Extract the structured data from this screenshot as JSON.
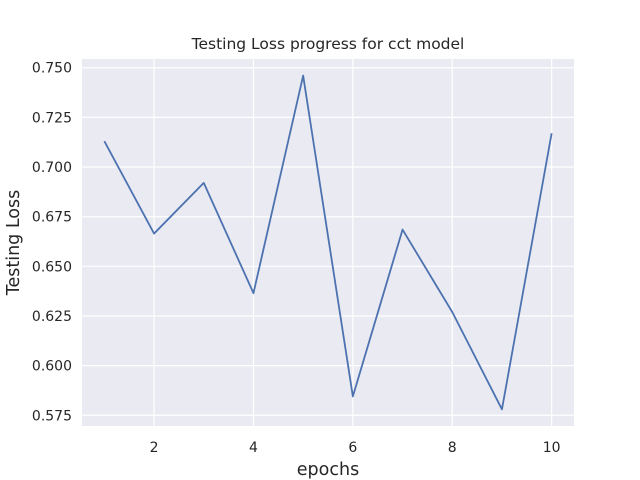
{
  "chart_data": {
    "type": "line",
    "title": "Testing Loss progress for cct model",
    "xlabel": "epochs",
    "ylabel": "Testing Loss",
    "x": [
      1,
      2,
      3,
      4,
      5,
      6,
      7,
      8,
      9,
      10
    ],
    "series": [
      {
        "values": [
          0.713,
          0.6665,
          0.692,
          0.6365,
          0.746,
          0.5845,
          0.6685,
          0.627,
          0.578,
          0.717
        ]
      }
    ],
    "xlim": [
      0.55,
      10.45
    ],
    "ylim": [
      0.5696,
      0.7544
    ],
    "x_ticks": [
      2,
      4,
      6,
      8,
      10
    ],
    "x_tick_labels": [
      "2",
      "4",
      "6",
      "8",
      "10"
    ],
    "y_ticks": [
      0.575,
      0.6,
      0.625,
      0.65,
      0.675,
      0.7,
      0.725,
      0.75
    ],
    "y_tick_labels": [
      "0.575",
      "0.600",
      "0.625",
      "0.650",
      "0.675",
      "0.700",
      "0.725",
      "0.750"
    ],
    "grid": true,
    "colors": {
      "background": "#eaeaf2",
      "grid": "#ffffff",
      "line": "#4c72b0",
      "text": "#262626"
    }
  }
}
